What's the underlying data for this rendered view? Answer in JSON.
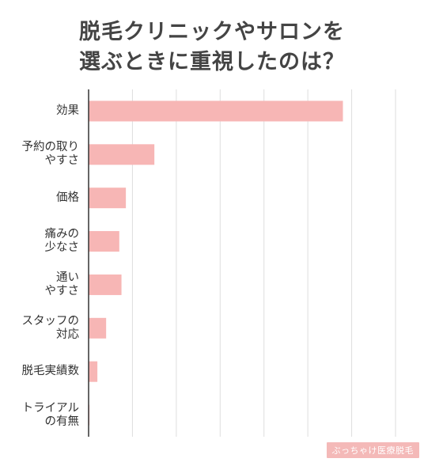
{
  "title": {
    "line1": "脱毛クリニックやサロンを",
    "line2": "選ぶときに重視したのは？"
  },
  "watermark": "ぶっちゃけ医療脱毛",
  "colors": {
    "bar": "#f7b6b5",
    "grid": "#dedede",
    "axis": "#333333",
    "watermark_bg": "#f4b9b8"
  },
  "chart_data": {
    "type": "bar",
    "orientation": "horizontal",
    "categories": [
      [
        "効果"
      ],
      [
        "予約の取り",
        "やすさ"
      ],
      [
        "価格"
      ],
      [
        "痛みの",
        "少なさ"
      ],
      [
        "通い",
        "やすさ"
      ],
      [
        "スタッフの",
        "対応"
      ],
      [
        "脱毛実績数"
      ],
      [
        "トライアル",
        "の有無"
      ]
    ],
    "values": [
      58,
      15,
      8.5,
      7,
      7.5,
      4,
      2,
      0.2
    ],
    "xlim": [
      0,
      70
    ],
    "grid": true,
    "grid_step": 10,
    "ylabel": "",
    "xlabel": ""
  }
}
